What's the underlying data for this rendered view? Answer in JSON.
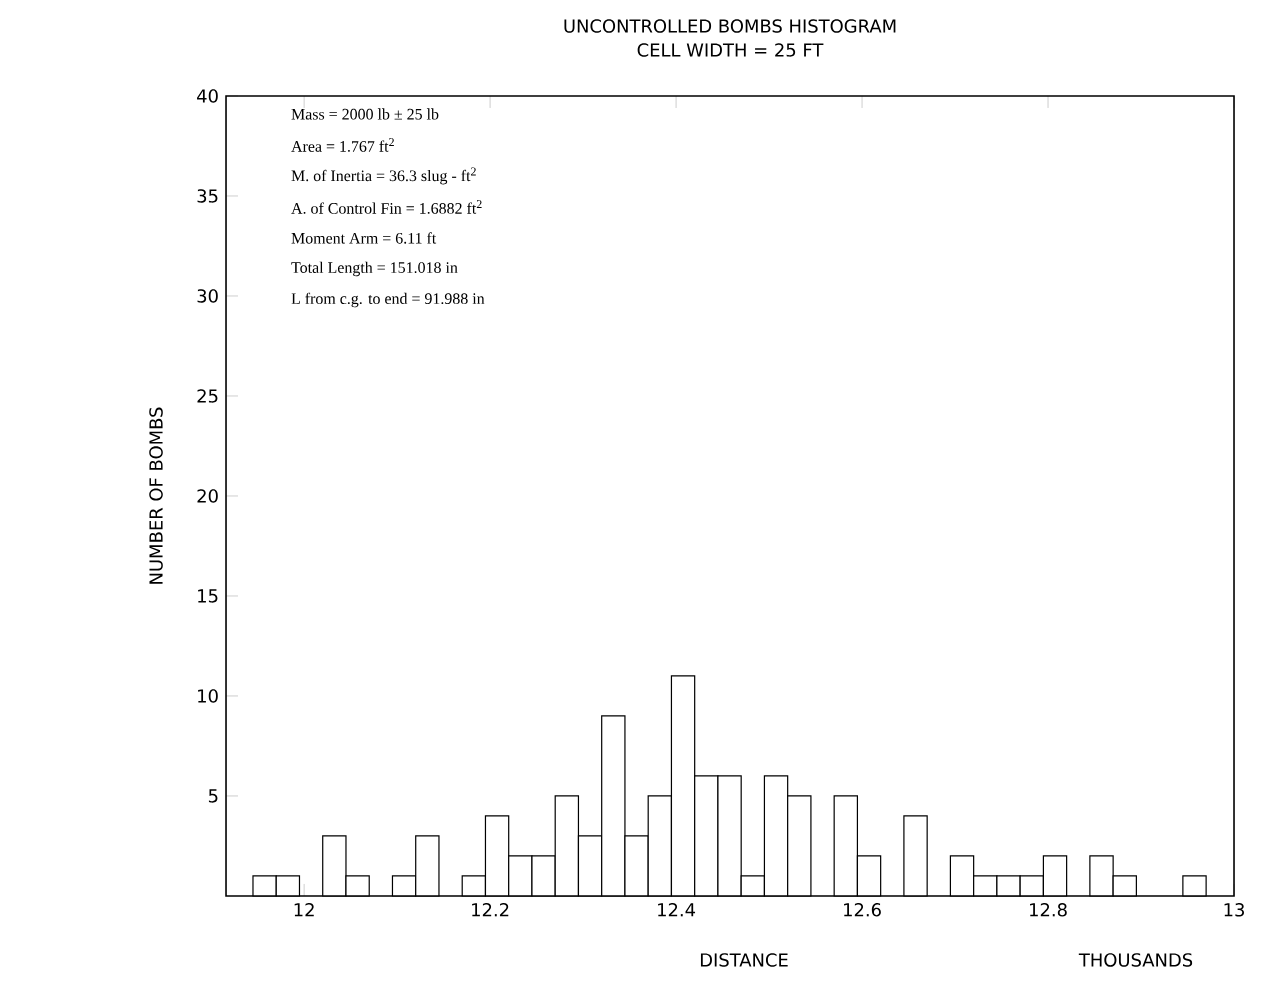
{
  "chart_data": {
    "type": "histogram",
    "title": "UNCONTROLLED BOMBS HISTOGRAM",
    "subtitle": "CELL WIDTH = 25 FT",
    "xlabel": "DISTANCE",
    "ylabel": "NUMBER OF BOMBS",
    "bins": [
      11.945,
      11.97,
      11.995,
      12.02,
      12.045,
      12.07,
      12.095,
      12.12,
      12.145,
      12.17,
      12.195,
      12.22,
      12.245,
      12.27,
      12.295,
      12.32,
      12.345,
      12.37,
      12.395,
      12.42,
      12.445,
      12.47,
      12.495,
      12.52,
      12.545,
      12.57,
      12.595,
      12.62,
      12.645,
      12.67,
      12.695,
      12.72,
      12.745,
      12.77,
      12.795,
      12.82,
      12.845,
      12.87,
      12.895,
      12.92,
      12.945,
      12.97
    ],
    "values": [
      1,
      1,
      0,
      3,
      1,
      0,
      1,
      3,
      0,
      1,
      4,
      2,
      2,
      5,
      3,
      9,
      3,
      5,
      11,
      6,
      6,
      1,
      6,
      5,
      0,
      5,
      2,
      0,
      4,
      0,
      2,
      1,
      1,
      1,
      2,
      0,
      2,
      1,
      0,
      0,
      1
    ],
    "color": "#ffffff",
    "xlim": [
      11.916,
      13
    ],
    "xticks": [
      12,
      12.2,
      12.4,
      12.6,
      12.8,
      13
    ],
    "ylim": [
      0,
      40
    ],
    "yticks": [
      5,
      10,
      15,
      20,
      25,
      30,
      35,
      40
    ],
    "grid": false,
    "annotations": [
      "Mass = 2000 lb ± 25 lb",
      "Area = 1.767 ft$^{2}$",
      "M. of Inertia = 36.3 slug - ft$^{2}$",
      "A. of Control Fin = 1.6882 ft$^{2}$",
      "Moment Arm = 6.11 ft",
      "Total Length = 151.018 in",
      "L from c.g. to end = 91.988 in",
      "THOUSANDS"
    ]
  }
}
